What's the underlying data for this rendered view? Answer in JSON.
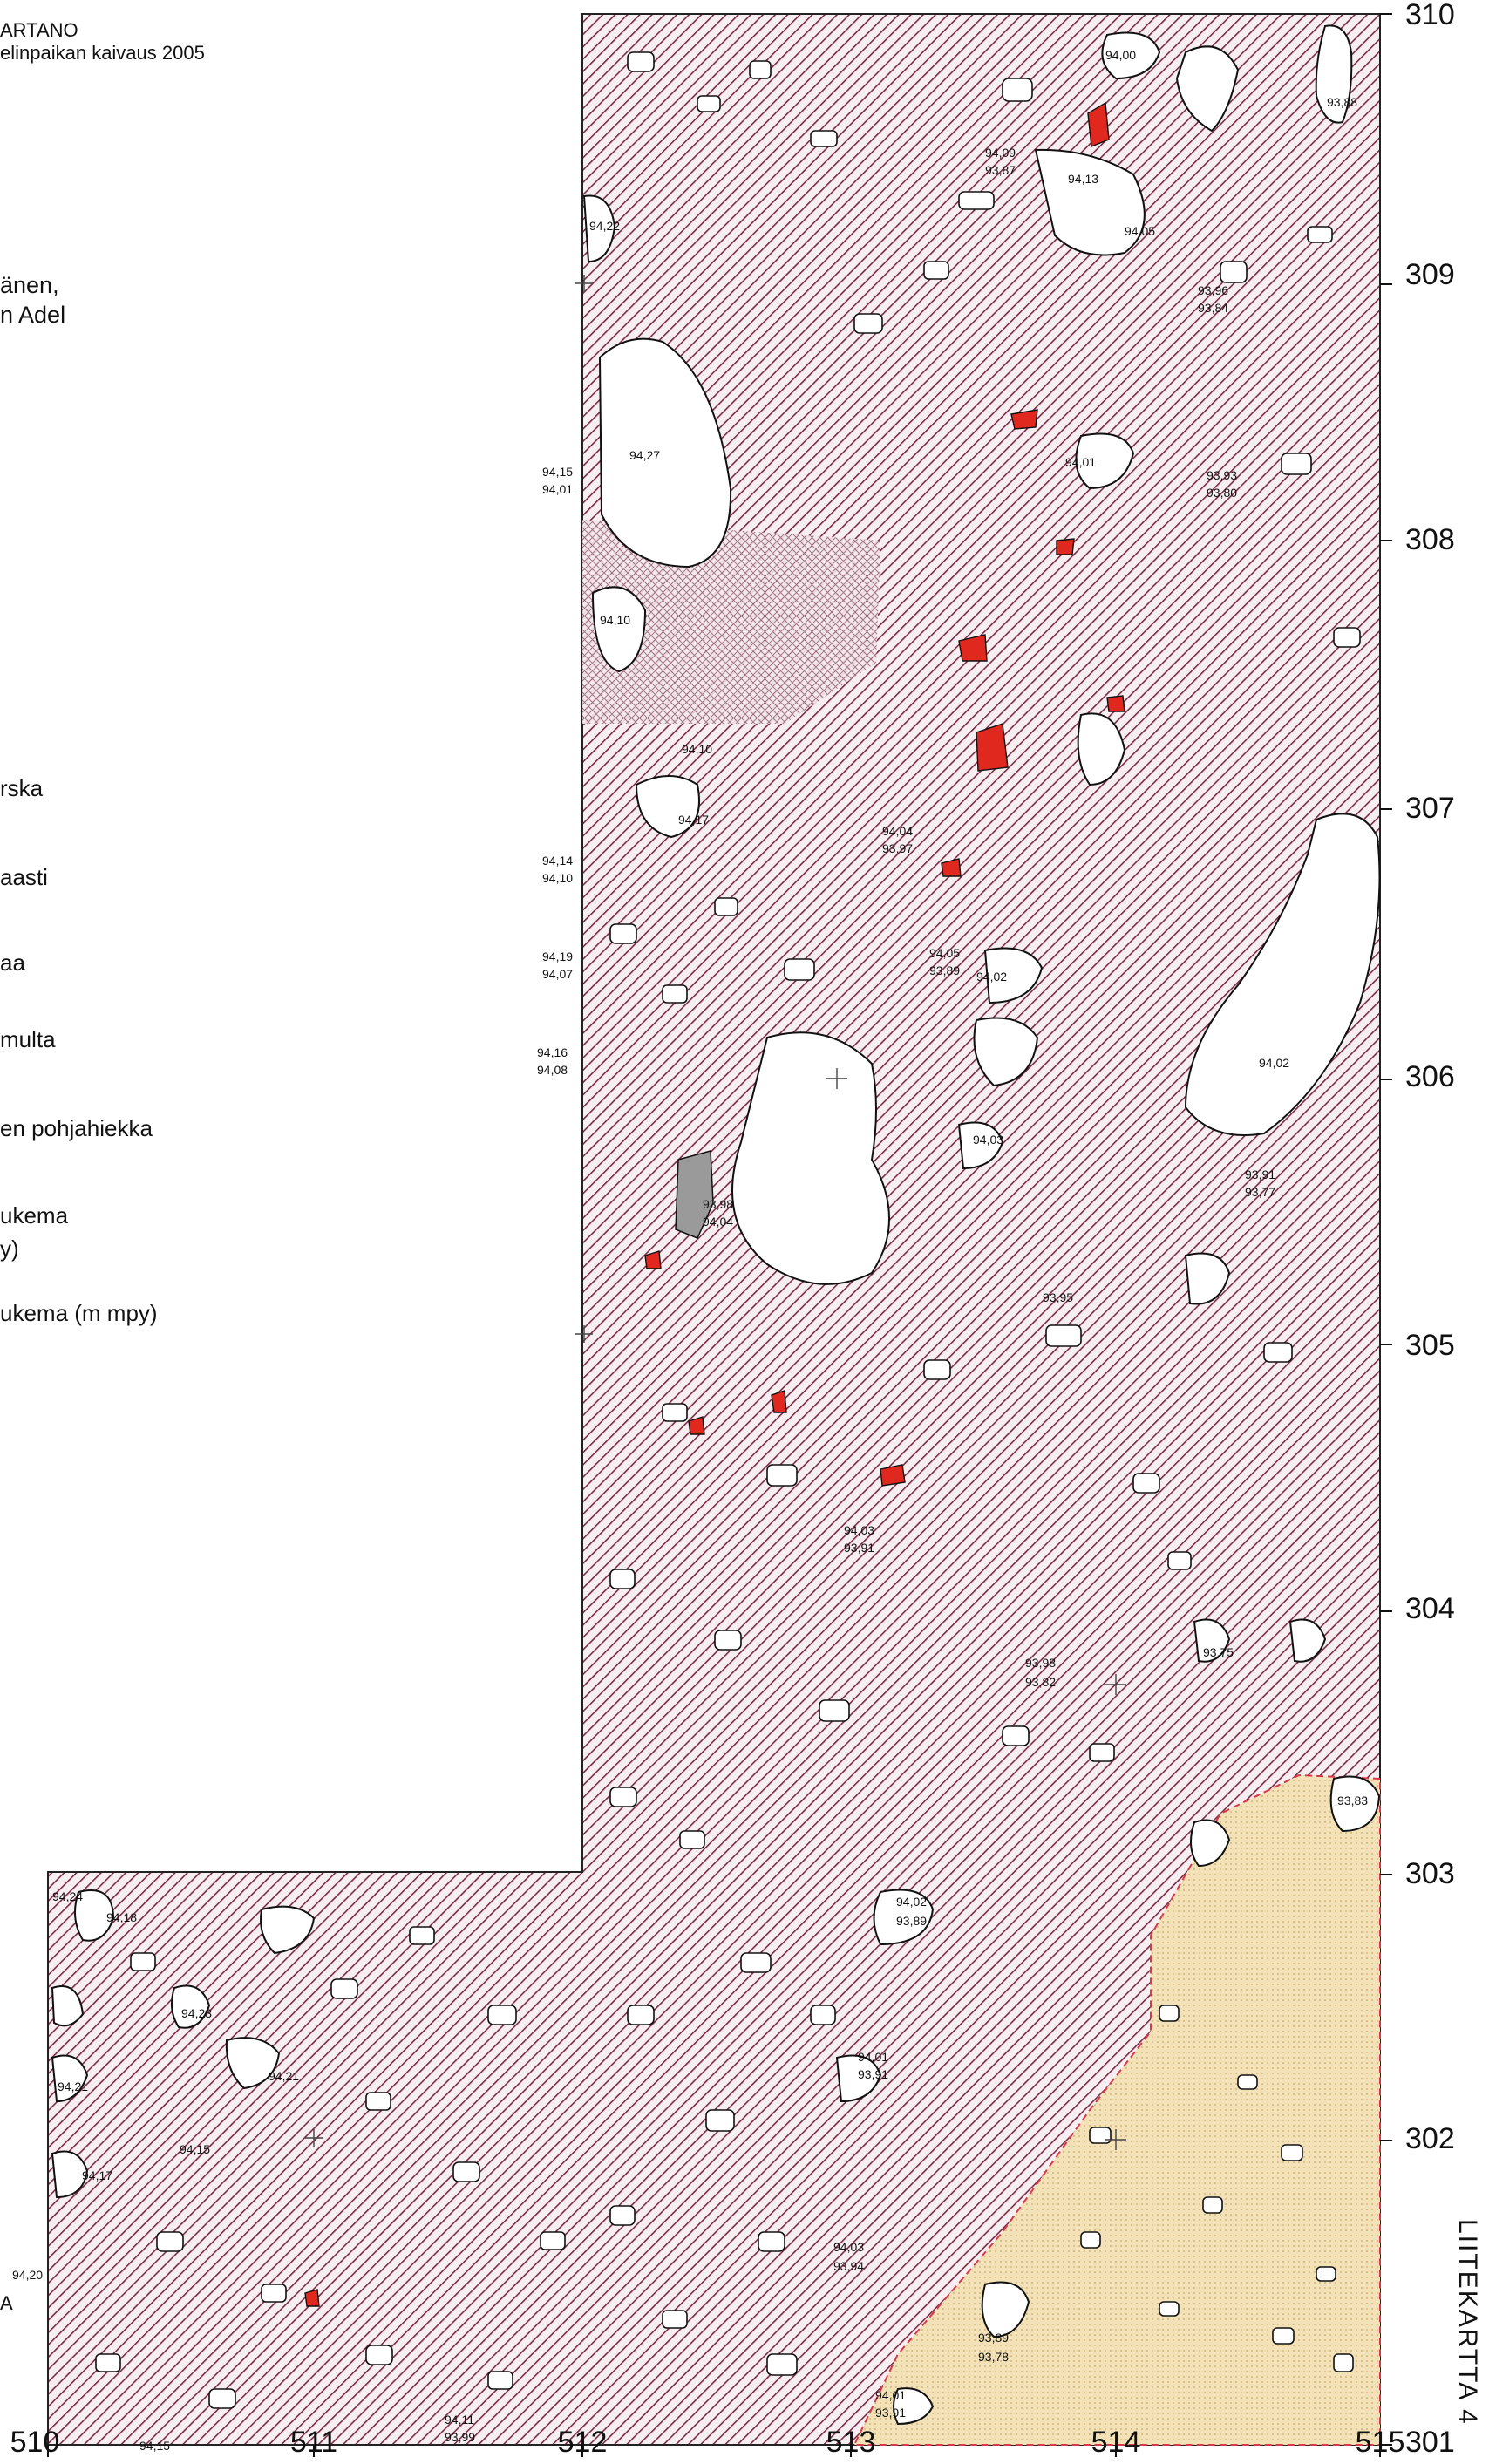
{
  "header": {
    "line1": "ARTANO",
    "line2": "elinpaikan kaivaus 2005",
    "line3": "änen,",
    "line4": "n Adel"
  },
  "legend": {
    "items": [
      {
        "label": "rska"
      },
      {
        "label": "aasti"
      },
      {
        "label": "aa"
      },
      {
        "label": "multa"
      },
      {
        "label": "en pohjahiekka"
      },
      {
        "label": "ukema"
      },
      {
        "label": "y)"
      },
      {
        "label": "ukema (m mpy)"
      },
      {
        "label": "A"
      }
    ]
  },
  "axes": {
    "y_ticks": [
      "310",
      "309",
      "308",
      "307",
      "306",
      "305",
      "304",
      "303",
      "302",
      "301"
    ],
    "x_ticks": [
      "510",
      "511",
      "512",
      "513",
      "514",
      "515"
    ]
  },
  "side_title": "LIITEKARTTA 4",
  "colors": {
    "hatch_line": "#7a2c44",
    "hatch_bg": "#f6eef1",
    "sand": "#f3e2b8",
    "red_find": "#e0281f",
    "grey_find": "#9a9a9a"
  },
  "elevation_labels": [
    {
      "a": "94,00",
      "b": ""
    },
    {
      "a": "93,88",
      "b": ""
    },
    {
      "a": "94,13",
      "b": ""
    },
    {
      "a": "94,05",
      "b": ""
    },
    {
      "a": "94,27",
      "b": ""
    },
    {
      "a": "94,22",
      "b": ""
    },
    {
      "a": "94,10",
      "b": ""
    },
    {
      "a": "94,17",
      "b": ""
    },
    {
      "a": "94,10",
      "b": ""
    },
    {
      "a": "94,02",
      "b": ""
    },
    {
      "a": "94,01",
      "b": ""
    },
    {
      "a": "94,02",
      "b": ""
    },
    {
      "a": "94,03",
      "b": ""
    },
    {
      "a": "93,95",
      "b": ""
    },
    {
      "a": "93,75",
      "b": ""
    },
    {
      "a": "93,83",
      "b": ""
    },
    {
      "a": "94,15",
      "b": "94,01"
    },
    {
      "a": "94,14",
      "b": "94,10"
    },
    {
      "a": "94,19",
      "b": "94,07"
    },
    {
      "a": "94,16",
      "b": "94,08"
    },
    {
      "a": "93,98",
      "b": "94,04"
    },
    {
      "a": "94,04",
      "b": "93,97"
    },
    {
      "a": "94,05",
      "b": "93,89"
    },
    {
      "a": "93,98",
      "b": "93,82"
    },
    {
      "a": "94,02",
      "b": "93,89"
    },
    {
      "a": "94,01",
      "b": "93,91"
    },
    {
      "a": "94,03",
      "b": "93,91"
    },
    {
      "a": "94,03",
      "b": "93,94"
    },
    {
      "a": "93,89",
      "b": "93,78"
    },
    {
      "a": "94,01",
      "b": "93,91"
    },
    {
      "a": "94,11",
      "b": "93,99"
    },
    {
      "a": "94,09",
      "b": "93,87"
    },
    {
      "a": "93,93",
      "b": "93,80"
    },
    {
      "a": "93,96",
      "b": "93,84"
    },
    {
      "a": "93,91",
      "b": "93,77"
    },
    {
      "a": "94,24",
      "b": ""
    },
    {
      "a": "94,18",
      "b": ""
    },
    {
      "a": "94,21",
      "b": ""
    },
    {
      "a": "94,23",
      "b": ""
    },
    {
      "a": "94,21",
      "b": ""
    },
    {
      "a": "94,17",
      "b": ""
    },
    {
      "a": "94,15",
      "b": ""
    },
    {
      "a": "94,20",
      "b": ""
    },
    {
      "a": "94,15",
      "b": ""
    }
  ]
}
